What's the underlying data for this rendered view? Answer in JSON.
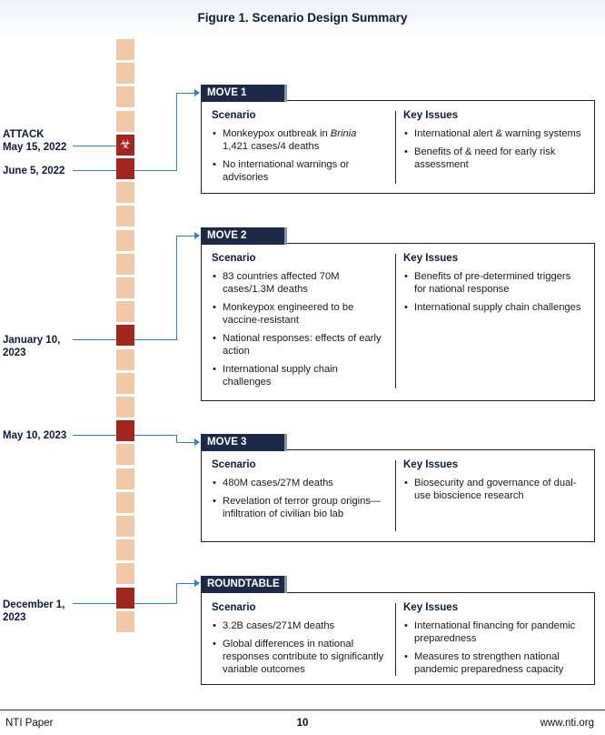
{
  "figure_title": "Figure 1. Scenario Design Summary",
  "dates": {
    "attack_label": "ATTACK",
    "attack_date": "May 15, 2022",
    "move1_date": "June 5, 2022",
    "move2_date_line1": "January 10,",
    "move2_date_line2": "2023",
    "move3_date": "May 10, 2023",
    "roundtable_date_line1": "December 1,",
    "roundtable_date_line2": "2023"
  },
  "moves": [
    {
      "tab": "MOVE 1",
      "scenario_heading": "Scenario",
      "issues_heading": "Key Issues",
      "scenario": [
        {
          "pre": "Monkeypox outbreak in ",
          "em": "Brinia",
          "post": " 1,421 cases/4 deaths"
        },
        {
          "pre": "No international warnings or advisories"
        }
      ],
      "issues": [
        "International alert & warning systems",
        "Benefits of & need for early risk assessment"
      ]
    },
    {
      "tab": "MOVE 2",
      "scenario_heading": "Scenario",
      "issues_heading": "Key Issues",
      "scenario": [
        {
          "pre": "83 countries affected 70M cases/1.3M deaths"
        },
        {
          "pre": "Monkeypox engineered to be vaccine-resistant"
        },
        {
          "pre": "National responses: effects of early action"
        },
        {
          "pre": "International supply chain challenges"
        }
      ],
      "issues": [
        "Benefits of pre-determined triggers for national response",
        "International supply chain challenges"
      ]
    },
    {
      "tab": "MOVE 3",
      "scenario_heading": "Scenario",
      "issues_heading": "Key Issues",
      "scenario": [
        {
          "pre": "480M cases/27M deaths"
        },
        {
          "pre": "Revelation of terror group origins—infiltration of civilian bio lab"
        }
      ],
      "issues": [
        "Biosecurity and governance of dual-use bioscience research"
      ]
    },
    {
      "tab": "ROUNDTABLE",
      "scenario_heading": "Scenario",
      "issues_heading": "Key Issues",
      "scenario": [
        {
          "pre": "3.2B cases/271M deaths"
        },
        {
          "pre": "Global differences in national responses contribute to significantly variable outcomes"
        }
      ],
      "issues": [
        "International financing for pandemic preparedness",
        "Measures to strengthen national pandemic preparedness capacity"
      ]
    }
  ],
  "footer": {
    "left": "NTI Paper",
    "center": "10",
    "right": "www.nti.org"
  },
  "colors": {
    "timeline_segment": "#f0c9a8",
    "timeline_marker": "#a3261e",
    "connector": "#2b84c4",
    "tab_bg": "#1c2a48",
    "footer_rule": "#8b1a1a"
  }
}
